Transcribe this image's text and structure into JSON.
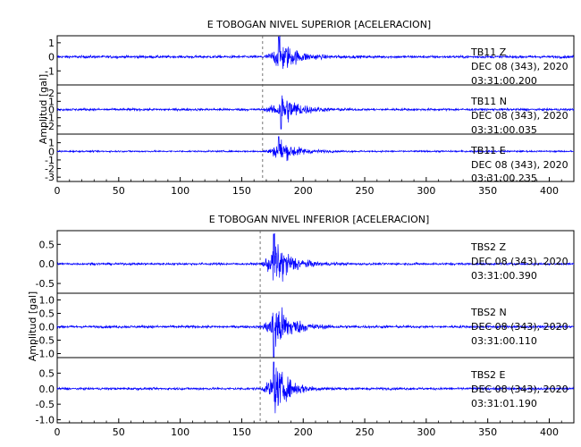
{
  "chart_data": [
    {
      "type": "line",
      "title": "E TOBOGAN NIVEL SUPERIOR [ACELERACION]",
      "ylabel": "Amplitud [gal]",
      "xlim": [
        0,
        420
      ],
      "x_ticks": [
        0,
        50,
        100,
        150,
        200,
        250,
        300,
        350,
        400
      ],
      "series": [
        {
          "name": "TB11 Z",
          "label_lines": [
            "TB11   Z",
            "DEC 08 (343), 2020",
            "03:31:00.200"
          ],
          "ylim": [
            -2,
            1.5
          ],
          "y_ticks": [
            -1,
            0,
            1
          ],
          "onset_s": 165,
          "peak_s": 180,
          "peak_amplitude": 1.5,
          "noise_amplitude": 0.1
        },
        {
          "name": "TB11 N",
          "label_lines": [
            "TB11   N",
            "DEC 08 (343), 2020",
            "03:31:00.035"
          ],
          "ylim": [
            -3,
            3
          ],
          "y_ticks": [
            -2,
            -1,
            0,
            1,
            2
          ],
          "onset_s": 165,
          "peak_s": 182,
          "peak_amplitude": 2.5,
          "noise_amplitude": 0.15
        },
        {
          "name": "TB11 E",
          "label_lines": [
            "TB11   E",
            "DEC 08 (343), 2020",
            "03:31:00.235"
          ],
          "ylim": [
            -3.5,
            2
          ],
          "y_ticks": [
            -3,
            -2,
            -1,
            0,
            1
          ],
          "onset_s": 165,
          "peak_s": 180,
          "peak_amplitude": 1.8,
          "noise_amplitude": 0.1
        }
      ]
    },
    {
      "type": "line",
      "title": "E TOBOGAN NIVEL INFERIOR [ACELERACION]",
      "ylabel": "Amplitud [gal]",
      "xlim": [
        0,
        420
      ],
      "x_ticks": [
        0,
        50,
        100,
        150,
        200,
        250,
        300,
        350,
        400
      ],
      "series": [
        {
          "name": "TBS2 Z",
          "label_lines": [
            "TBS2   Z",
            "DEC 08 (343), 2020",
            "03:31:00.390"
          ],
          "ylim": [
            -0.75,
            0.85
          ],
          "y_ticks": [
            -0.5,
            0.0,
            0.5
          ],
          "tick_decimals": 1,
          "onset_s": 163,
          "peak_s": 176,
          "peak_amplitude": 0.8,
          "noise_amplitude": 0.03
        },
        {
          "name": "TBS2 N",
          "label_lines": [
            "TBS2   N",
            "DEC 08 (343), 2020",
            "03:31:00.110"
          ],
          "ylim": [
            -1.15,
            1.25
          ],
          "y_ticks": [
            -1.0,
            -0.5,
            0.0,
            0.5,
            1.0
          ],
          "tick_decimals": 1,
          "onset_s": 163,
          "peak_s": 176,
          "peak_amplitude": 1.2,
          "noise_amplitude": 0.05
        },
        {
          "name": "TBS2 E",
          "label_lines": [
            "TBS2   E",
            "DEC 08 (343), 2020",
            "03:31:01.190"
          ],
          "ylim": [
            -1.1,
            1.0
          ],
          "y_ticks": [
            -1.0,
            -0.5,
            0.0,
            0.5
          ],
          "tick_decimals": 1,
          "onset_s": 163,
          "peak_s": 176,
          "peak_amplitude": 0.9,
          "noise_amplitude": 0.04
        }
      ]
    }
  ],
  "colors": {
    "trace": "#0000ff",
    "axis": "#000000",
    "marker": "#555555"
  }
}
